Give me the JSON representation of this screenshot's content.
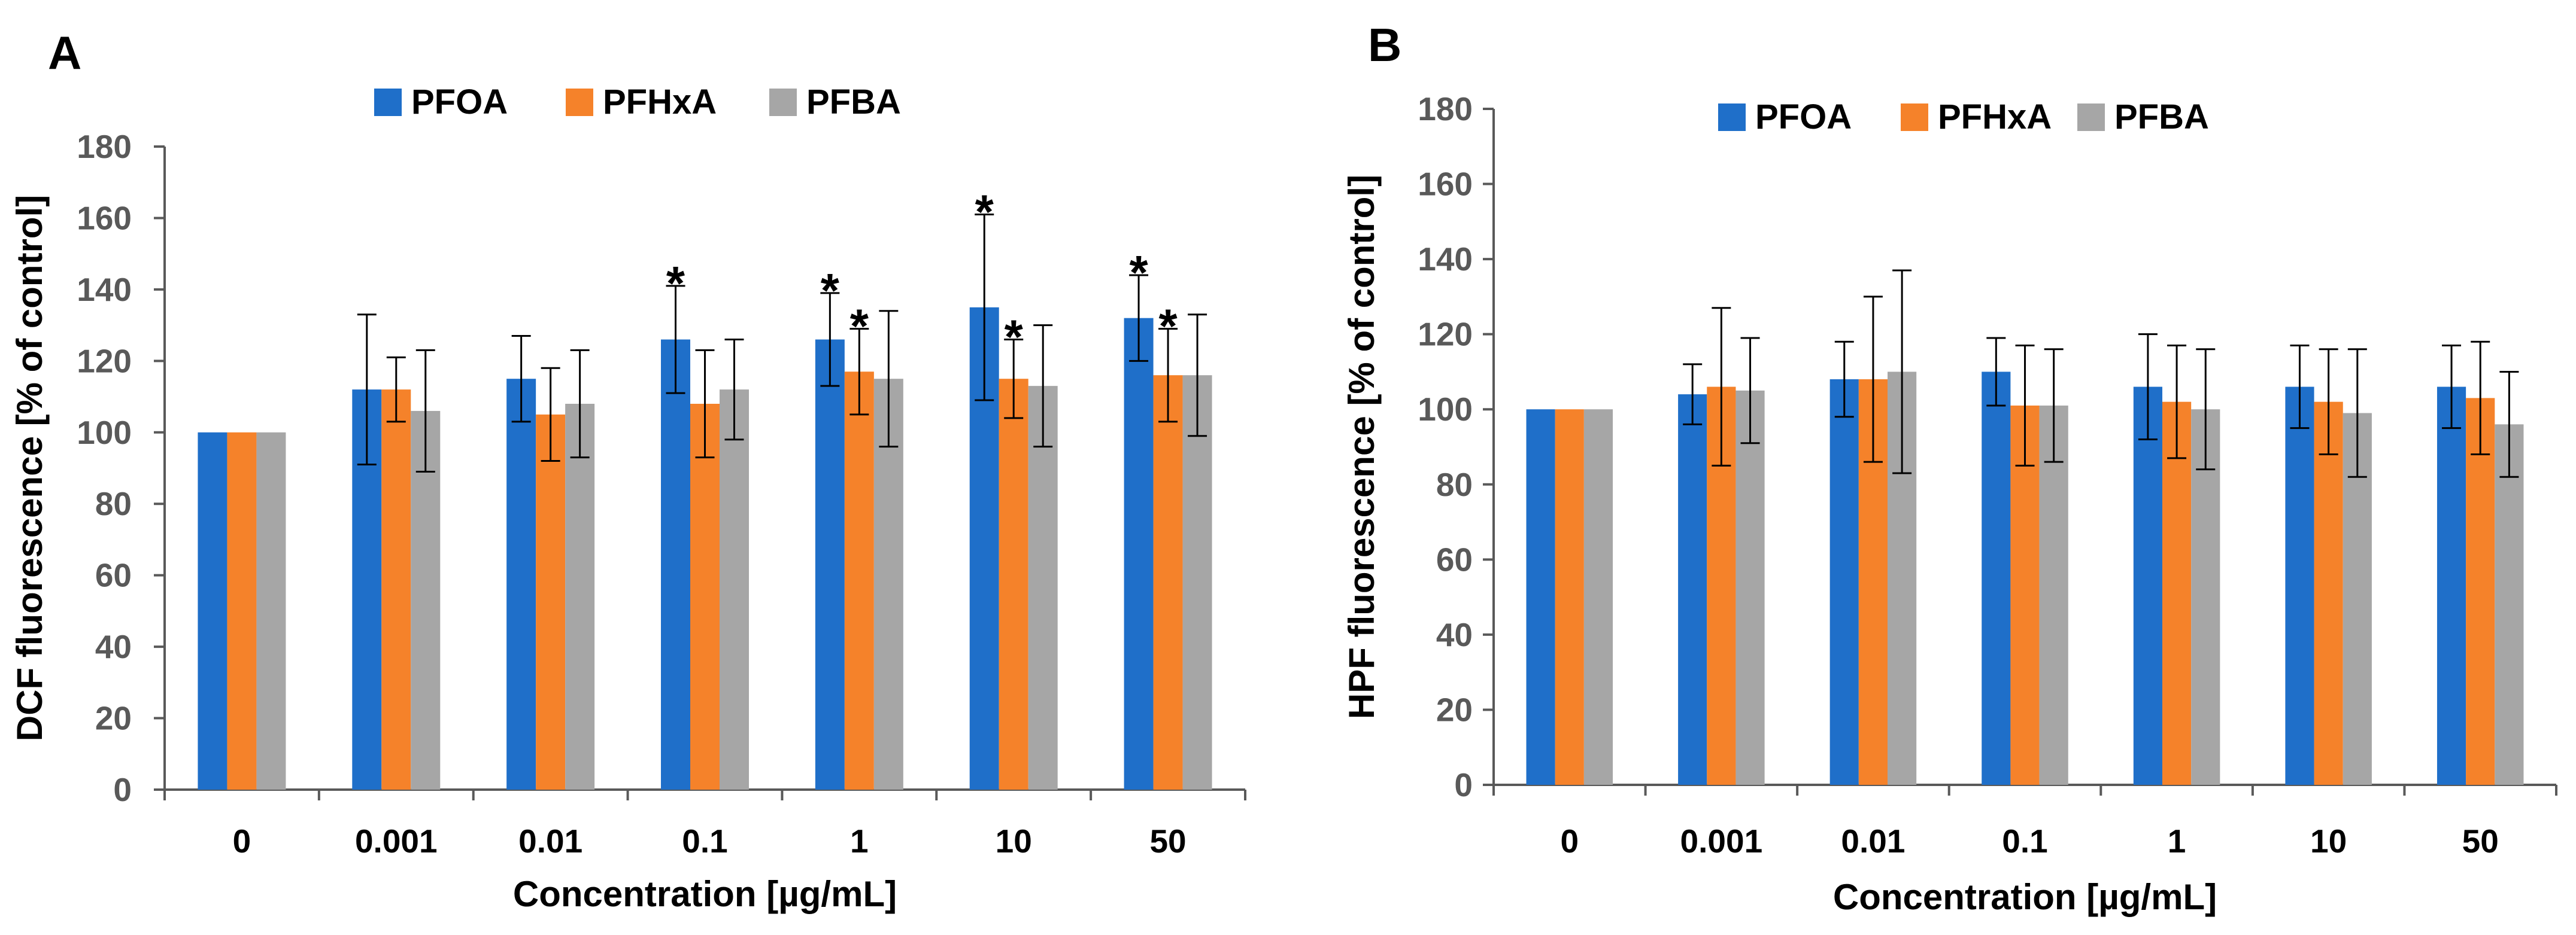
{
  "colors": {
    "PFOA": "#1F6FC9",
    "PFHxA": "#F5822A",
    "PFBA": "#A6A6A6",
    "axis": "#595959",
    "error": "#000000"
  },
  "chart_data": [
    {
      "panel": "A",
      "type": "bar",
      "ylabel": "DCF fluorescence [% of control]",
      "xlabel": "Concentration [µg/mL]",
      "ylim": [
        0,
        180
      ],
      "yticks": [
        "0",
        "20",
        "40",
        "60",
        "80",
        "100",
        "120",
        "140",
        "160",
        "180"
      ],
      "legend_position": "top-center",
      "categories": [
        "0",
        "0.001",
        "0.01",
        "0.1",
        "1",
        "10",
        "50"
      ],
      "series": [
        {
          "name": "PFOA",
          "values": [
            100,
            112,
            115,
            126,
            126,
            135,
            132
          ],
          "errors": [
            0,
            21,
            12,
            15,
            13,
            26,
            12
          ],
          "significant": [
            false,
            false,
            false,
            true,
            true,
            true,
            true
          ]
        },
        {
          "name": "PFHxA",
          "values": [
            100,
            112,
            105,
            108,
            117,
            115,
            116
          ],
          "errors": [
            0,
            9,
            13,
            15,
            12,
            11,
            13
          ],
          "significant": [
            false,
            false,
            false,
            false,
            true,
            true,
            true
          ]
        },
        {
          "name": "PFBA",
          "values": [
            100,
            106,
            108,
            112,
            115,
            113,
            116
          ],
          "errors": [
            0,
            17,
            15,
            14,
            19,
            17,
            17
          ],
          "significant": [
            false,
            false,
            false,
            false,
            false,
            false,
            false
          ]
        }
      ],
      "significance_marker": "*"
    },
    {
      "panel": "B",
      "type": "bar",
      "ylabel": "HPF fluorescence [% of control]",
      "xlabel": "Concentration [µg/mL]",
      "ylim": [
        0,
        180
      ],
      "yticks": [
        "0",
        "20",
        "40",
        "60",
        "80",
        "100",
        "120",
        "140",
        "160",
        "180"
      ],
      "legend_position": "top-center",
      "categories": [
        "0",
        "0.001",
        "0.01",
        "0.1",
        "1",
        "10",
        "50"
      ],
      "series": [
        {
          "name": "PFOA",
          "values": [
            100,
            104,
            108,
            110,
            106,
            106,
            106
          ],
          "errors": [
            0,
            8,
            10,
            9,
            14,
            11,
            11
          ],
          "significant": [
            false,
            false,
            false,
            false,
            false,
            false,
            false
          ]
        },
        {
          "name": "PFHxA",
          "values": [
            100,
            106,
            108,
            101,
            102,
            102,
            103
          ],
          "errors": [
            0,
            21,
            22,
            16,
            15,
            14,
            15
          ],
          "significant": [
            false,
            false,
            false,
            false,
            false,
            false,
            false
          ]
        },
        {
          "name": "PFBA",
          "values": [
            100,
            105,
            110,
            101,
            100,
            99,
            96
          ],
          "errors": [
            0,
            14,
            27,
            15,
            16,
            17,
            14
          ],
          "significant": [
            false,
            false,
            false,
            false,
            false,
            false,
            false
          ]
        }
      ],
      "significance_marker": "*"
    }
  ]
}
